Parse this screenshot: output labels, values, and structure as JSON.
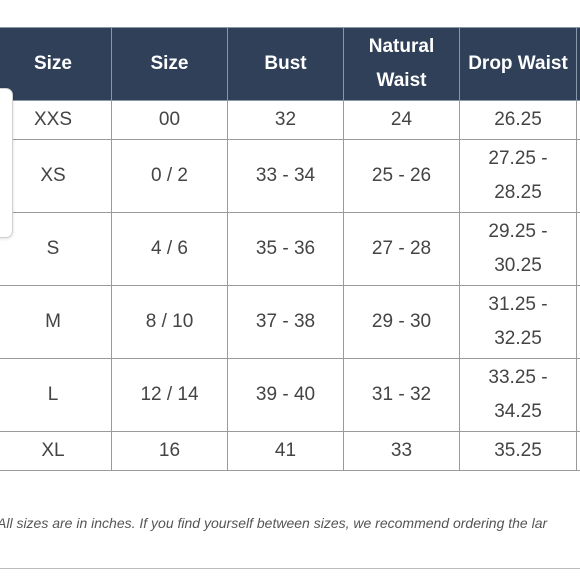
{
  "table": {
    "headers": [
      "Size",
      "Size",
      "Bust",
      "Natural\nWaist",
      "Drop Waist",
      ""
    ],
    "rows": [
      {
        "cells": [
          "XXS",
          "00",
          "32",
          "24",
          "26.25",
          ""
        ],
        "tall": false
      },
      {
        "cells": [
          "XS",
          "0 / 2",
          "33 - 34",
          "25 - 26",
          "27.25 -\n28.25",
          ""
        ],
        "tall": true
      },
      {
        "cells": [
          "S",
          "4 / 6",
          "35 - 36",
          "27 - 28",
          "29.25 -\n30.25",
          ""
        ],
        "tall": true
      },
      {
        "cells": [
          "M",
          "8 / 10",
          "37 - 38",
          "29 - 30",
          "31.25 -\n32.25",
          ""
        ],
        "tall": true
      },
      {
        "cells": [
          "L",
          "12 / 14",
          "39 - 40",
          "31 - 32",
          "33.25 -\n34.25",
          ""
        ],
        "tall": true
      },
      {
        "cells": [
          "XL",
          "16",
          "41",
          "33",
          "35.25",
          ""
        ],
        "tall": false
      }
    ]
  },
  "footnote": "All sizes are in inches. If you find yourself between sizes, we recommend ordering the lar",
  "colors": {
    "header_bg": "#2f4058",
    "header_text": "#ffffff",
    "cell_text": "#444444",
    "border": "#9a9a9a"
  }
}
